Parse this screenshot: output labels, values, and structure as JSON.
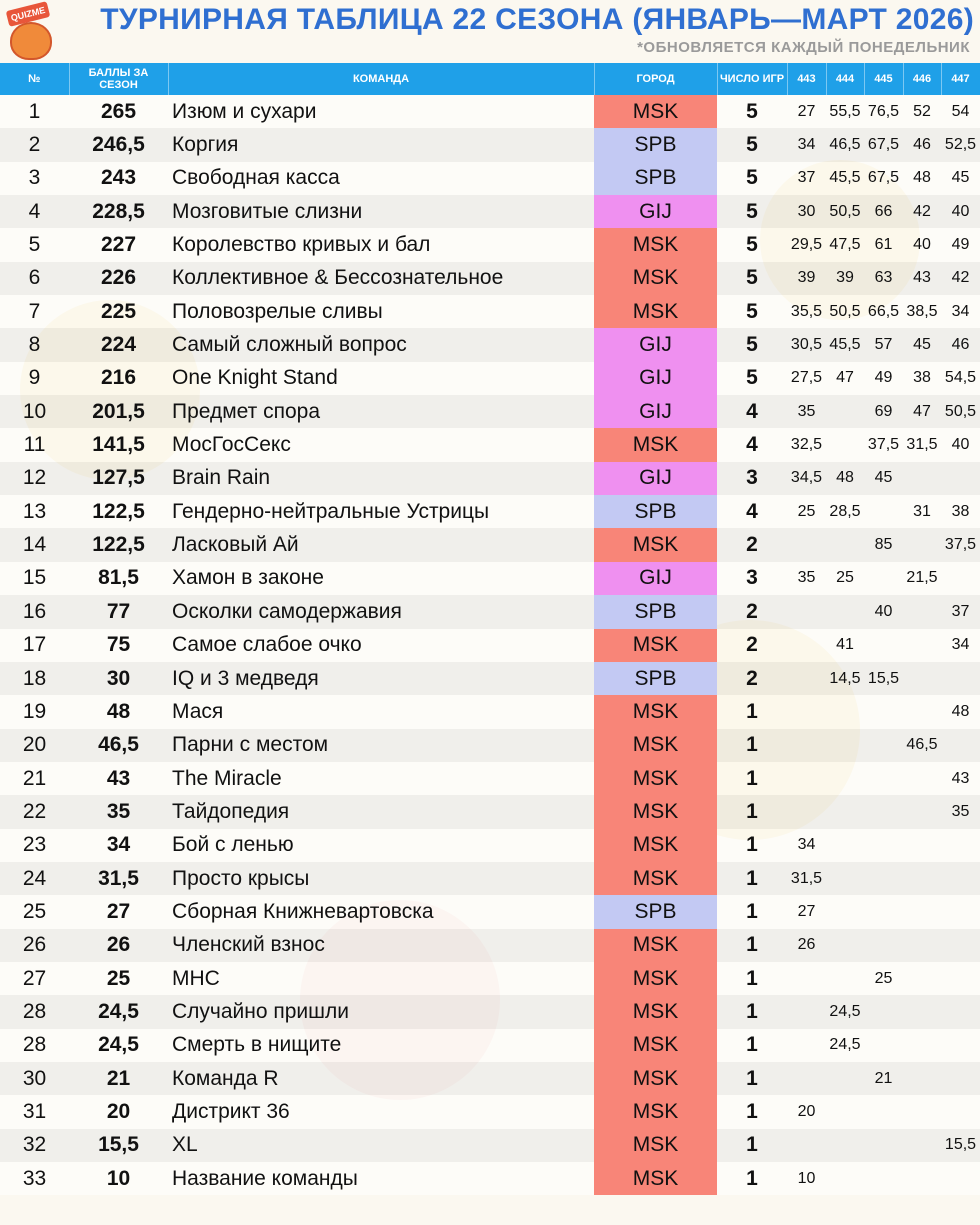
{
  "header": {
    "logo_text": "QUIZME",
    "title": "ТУРНИРНАЯ ТАБЛИЦА 22 СЕЗОНА (ЯНВАРЬ—МАРТ 2026)",
    "subtitle": "*ОБНОВЛЯЕТСЯ КАЖДЫЙ ПОНЕДЕЛЬНИК"
  },
  "colors": {
    "header_blue": "#1fa0e8",
    "title_blue": "#2f6fd1",
    "MSK": "#f88578",
    "SPB": "#c3c9f3",
    "GIJ": "#ef90f0"
  },
  "columns": {
    "rank": "№",
    "points": "БАЛЛЫ ЗА СЕЗОН",
    "team": "КОМАНДА",
    "city": "ГОРОД",
    "games": "ЧИСЛО ИГР",
    "games_list": [
      "443",
      "444",
      "445",
      "446",
      "447"
    ]
  },
  "rows": [
    {
      "rank": "1",
      "points": "265",
      "team": "Изюм и сухари",
      "city": "MSK",
      "games": "5",
      "scores": [
        "27",
        "55,5",
        "76,5",
        "52",
        "54"
      ]
    },
    {
      "rank": "2",
      "points": "246,5",
      "team": "Коргия",
      "city": "SPB",
      "games": "5",
      "scores": [
        "34",
        "46,5",
        "67,5",
        "46",
        "52,5"
      ]
    },
    {
      "rank": "3",
      "points": "243",
      "team": "Свободная касса",
      "city": "SPB",
      "games": "5",
      "scores": [
        "37",
        "45,5",
        "67,5",
        "48",
        "45"
      ]
    },
    {
      "rank": "4",
      "points": "228,5",
      "team": "Мозговитые слизни",
      "city": "GIJ",
      "games": "5",
      "scores": [
        "30",
        "50,5",
        "66",
        "42",
        "40"
      ]
    },
    {
      "rank": "5",
      "points": "227",
      "team": "Королевство кривых и бал",
      "city": "MSK",
      "games": "5",
      "scores": [
        "29,5",
        "47,5",
        "61",
        "40",
        "49"
      ]
    },
    {
      "rank": "6",
      "points": "226",
      "team": "Коллективное & Бессознательное",
      "city": "MSK",
      "games": "5",
      "scores": [
        "39",
        "39",
        "63",
        "43",
        "42"
      ]
    },
    {
      "rank": "7",
      "points": "225",
      "team": "Половозрелые сливы",
      "city": "MSK",
      "games": "5",
      "scores": [
        "35,5",
        "50,5",
        "66,5",
        "38,5",
        "34"
      ]
    },
    {
      "rank": "8",
      "points": "224",
      "team": "Самый сложный вопрос",
      "city": "GIJ",
      "games": "5",
      "scores": [
        "30,5",
        "45,5",
        "57",
        "45",
        "46"
      ]
    },
    {
      "rank": "9",
      "points": "216",
      "team": "One Knight Stand",
      "city": "GIJ",
      "games": "5",
      "scores": [
        "27,5",
        "47",
        "49",
        "38",
        "54,5"
      ]
    },
    {
      "rank": "10",
      "points": "201,5",
      "team": "Предмет спора",
      "city": "GIJ",
      "games": "4",
      "scores": [
        "35",
        "",
        "69",
        "47",
        "50,5"
      ]
    },
    {
      "rank": "11",
      "points": "141,5",
      "team": "МосГосСекс",
      "city": "MSK",
      "games": "4",
      "scores": [
        "32,5",
        "",
        "37,5",
        "31,5",
        "40"
      ]
    },
    {
      "rank": "12",
      "points": "127,5",
      "team": "Brain Rain",
      "city": "GIJ",
      "games": "3",
      "scores": [
        "34,5",
        "48",
        "45",
        "",
        ""
      ]
    },
    {
      "rank": "13",
      "points": "122,5",
      "team": "Гендерно-нейтральные Устрицы",
      "city": "SPB",
      "games": "4",
      "scores": [
        "25",
        "28,5",
        "",
        "31",
        "38"
      ]
    },
    {
      "rank": "14",
      "points": "122,5",
      "team": "Ласковый Ай",
      "city": "MSK",
      "games": "2",
      "scores": [
        "",
        "",
        "85",
        "",
        "37,5"
      ]
    },
    {
      "rank": "15",
      "points": "81,5",
      "team": "Хамон в законе",
      "city": "GIJ",
      "games": "3",
      "scores": [
        "35",
        "25",
        "",
        "21,5",
        ""
      ]
    },
    {
      "rank": "16",
      "points": "77",
      "team": "Осколки самодержавия",
      "city": "SPB",
      "games": "2",
      "scores": [
        "",
        "",
        "40",
        "",
        "37"
      ]
    },
    {
      "rank": "17",
      "points": "75",
      "team": "Самое слабое очко",
      "city": "MSK",
      "games": "2",
      "scores": [
        "",
        "41",
        "",
        "",
        "34"
      ]
    },
    {
      "rank": "18",
      "points": "30",
      "team": "IQ и 3 медведя",
      "city": "SPB",
      "games": "2",
      "scores": [
        "",
        "14,5",
        "15,5",
        "",
        ""
      ]
    },
    {
      "rank": "19",
      "points": "48",
      "team": "Мася",
      "city": "MSK",
      "games": "1",
      "scores": [
        "",
        "",
        "",
        "",
        "48"
      ]
    },
    {
      "rank": "20",
      "points": "46,5",
      "team": "Парни с местом",
      "city": "MSK",
      "games": "1",
      "scores": [
        "",
        "",
        "",
        "46,5",
        ""
      ]
    },
    {
      "rank": "21",
      "points": "43",
      "team": "The Miracle",
      "city": "MSK",
      "games": "1",
      "scores": [
        "",
        "",
        "",
        "",
        "43"
      ]
    },
    {
      "rank": "22",
      "points": "35",
      "team": "Тайдопедия",
      "city": "MSK",
      "games": "1",
      "scores": [
        "",
        "",
        "",
        "",
        "35"
      ]
    },
    {
      "rank": "23",
      "points": "34",
      "team": "Бой с ленью",
      "city": "MSK",
      "games": "1",
      "scores": [
        "34",
        "",
        "",
        "",
        ""
      ]
    },
    {
      "rank": "24",
      "points": "31,5",
      "team": "Просто крысы",
      "city": "MSK",
      "games": "1",
      "scores": [
        "31,5",
        "",
        "",
        "",
        ""
      ]
    },
    {
      "rank": "25",
      "points": "27",
      "team": "Сборная Книжневартовска",
      "city": "SPB",
      "games": "1",
      "scores": [
        "27",
        "",
        "",
        "",
        ""
      ]
    },
    {
      "rank": "26",
      "points": "26",
      "team": "Членский взнос",
      "city": "MSK",
      "games": "1",
      "scores": [
        "26",
        "",
        "",
        "",
        ""
      ]
    },
    {
      "rank": "27",
      "points": "25",
      "team": "МНС",
      "city": "MSK",
      "games": "1",
      "scores": [
        "",
        "",
        "25",
        "",
        ""
      ]
    },
    {
      "rank": "28",
      "points": "24,5",
      "team": "Случайно пришли",
      "city": "MSK",
      "games": "1",
      "scores": [
        "",
        "24,5",
        "",
        "",
        ""
      ]
    },
    {
      "rank": "28",
      "points": "24,5",
      "team": "Смерть в нищите",
      "city": "MSK",
      "games": "1",
      "scores": [
        "",
        "24,5",
        "",
        "",
        ""
      ]
    },
    {
      "rank": "30",
      "points": "21",
      "team": "Команда R",
      "city": "MSK",
      "games": "1",
      "scores": [
        "",
        "",
        "21",
        "",
        ""
      ]
    },
    {
      "rank": "31",
      "points": "20",
      "team": "Дистрикт 36",
      "city": "MSK",
      "games": "1",
      "scores": [
        "20",
        "",
        "",
        "",
        ""
      ]
    },
    {
      "rank": "32",
      "points": "15,5",
      "team": "XL",
      "city": "MSK",
      "games": "1",
      "scores": [
        "",
        "",
        "",
        "",
        "15,5"
      ]
    },
    {
      "rank": "33",
      "points": "10",
      "team": "Название команды",
      "city": "MSK",
      "games": "1",
      "scores": [
        "10",
        "",
        "",
        "",
        ""
      ]
    }
  ]
}
